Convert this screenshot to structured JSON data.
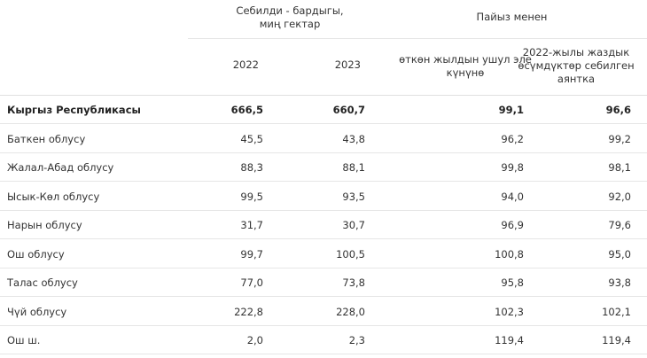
{
  "header": {
    "group_area": "Себилди - бардыгы,\nмиң гектар",
    "group_percent": "Пайыз менен",
    "year_2022": "2022",
    "year_2023": "2023",
    "col_prev_year": "өткөн жылдын ушул эле\nкүнүнө",
    "col_sown_2022": "2022-жылы жаздык\nөсүмдүктөр себилген\nаянтка"
  },
  "rows": [
    {
      "name": "Кыргыз Республикасы",
      "v2022": "666,5",
      "v2023": "660,7",
      "prev": "99,1",
      "sown": "96,6"
    },
    {
      "name": "Баткен облусу",
      "v2022": "45,5",
      "v2023": "43,8",
      "prev": "96,2",
      "sown": "99,2"
    },
    {
      "name": "Жалал-Абад облусу",
      "v2022": "88,3",
      "v2023": "88,1",
      "prev": "99,8",
      "sown": "98,1"
    },
    {
      "name": "Ысык-Көл облусу",
      "v2022": "99,5",
      "v2023": "93,5",
      "prev": "94,0",
      "sown": "92,0"
    },
    {
      "name": "Нарын облусу",
      "v2022": "31,7",
      "v2023": "30,7",
      "prev": "96,9",
      "sown": "79,6"
    },
    {
      "name": "Ош облусу",
      "v2022": "99,7",
      "v2023": "100,5",
      "prev": "100,8",
      "sown": "95,0"
    },
    {
      "name": "Талас облусу",
      "v2022": "77,0",
      "v2023": "73,8",
      "prev": "95,8",
      "sown": "93,8"
    },
    {
      "name": "Чүй облусу",
      "v2022": "222,8",
      "v2023": "228,0",
      "prev": "102,3",
      "sown": "102,1"
    },
    {
      "name": "Ош ш.",
      "v2022": "2,0",
      "v2023": "2,3",
      "prev": "119,4",
      "sown": "119,4"
    }
  ]
}
